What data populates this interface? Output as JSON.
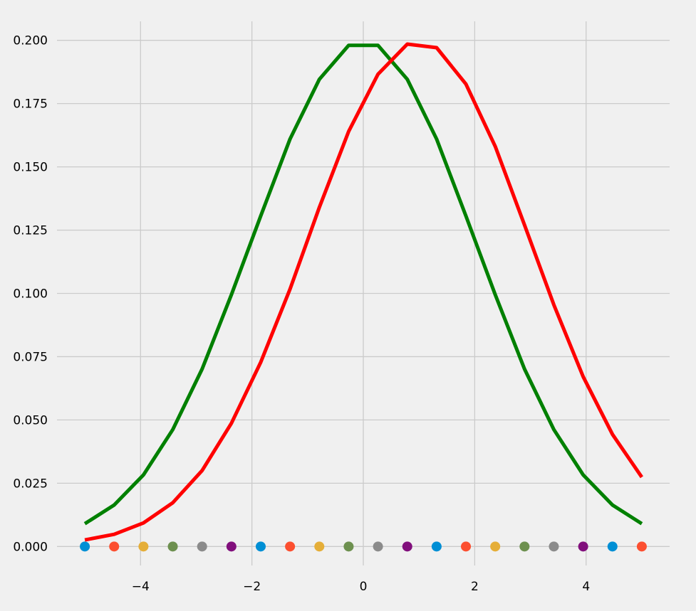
{
  "chart_data": {
    "type": "line",
    "title": "",
    "xlabel": "",
    "ylabel": "",
    "xlim": [
      -5.5,
      5.5
    ],
    "ylim": [
      -0.0075,
      0.2075
    ],
    "grid": true,
    "x": [
      -5.0,
      -4.4737,
      -3.9474,
      -3.4211,
      -2.8947,
      -2.3684,
      -1.8421,
      -1.3158,
      -0.7895,
      -0.2632,
      0.2632,
      0.7895,
      1.3158,
      1.8421,
      2.3684,
      2.8947,
      3.4211,
      3.9474,
      4.4737,
      5.0
    ],
    "series": [
      {
        "color": "#008000",
        "values": [
          0.009,
          0.0164,
          0.0283,
          0.0462,
          0.0701,
          0.0995,
          0.1306,
          0.161,
          0.1846,
          0.198,
          0.198,
          0.1846,
          0.161,
          0.1306,
          0.0995,
          0.0701,
          0.0462,
          0.0283,
          0.0164,
          0.009
        ]
      },
      {
        "color": "#ff0000",
        "values": [
          0.0026,
          0.0048,
          0.0093,
          0.0173,
          0.03,
          0.0487,
          0.0728,
          0.1017,
          0.134,
          0.164,
          0.1866,
          0.1985,
          0.1971,
          0.1827,
          0.1581,
          0.127,
          0.0955,
          0.0671,
          0.0443,
          0.0274
        ]
      }
    ],
    "markers": {
      "y": 0.0,
      "colors": [
        "#008fd5",
        "#fc4f30",
        "#e5ae38",
        "#6d904f",
        "#8b8b8b",
        "#810f7c",
        "#008fd5",
        "#fc4f30",
        "#e5ae38",
        "#6d904f",
        "#8b8b8b",
        "#810f7c",
        "#008fd5",
        "#fc4f30",
        "#e5ae38",
        "#6d904f",
        "#8b8b8b",
        "#810f7c",
        "#008fd5",
        "#fc4f30"
      ]
    },
    "x_ticks": [
      {
        "value": -4,
        "label": "−4"
      },
      {
        "value": -2,
        "label": "−2"
      },
      {
        "value": 0,
        "label": "0"
      },
      {
        "value": 2,
        "label": "2"
      },
      {
        "value": 4,
        "label": "4"
      }
    ],
    "y_ticks": [
      {
        "value": 0.0,
        "label": "0.000"
      },
      {
        "value": 0.025,
        "label": "0.025"
      },
      {
        "value": 0.05,
        "label": "0.050"
      },
      {
        "value": 0.075,
        "label": "0.075"
      },
      {
        "value": 0.1,
        "label": "0.100"
      },
      {
        "value": 0.125,
        "label": "0.125"
      },
      {
        "value": 0.15,
        "label": "0.150"
      },
      {
        "value": 0.175,
        "label": "0.175"
      },
      {
        "value": 0.2,
        "label": "0.200"
      }
    ]
  }
}
